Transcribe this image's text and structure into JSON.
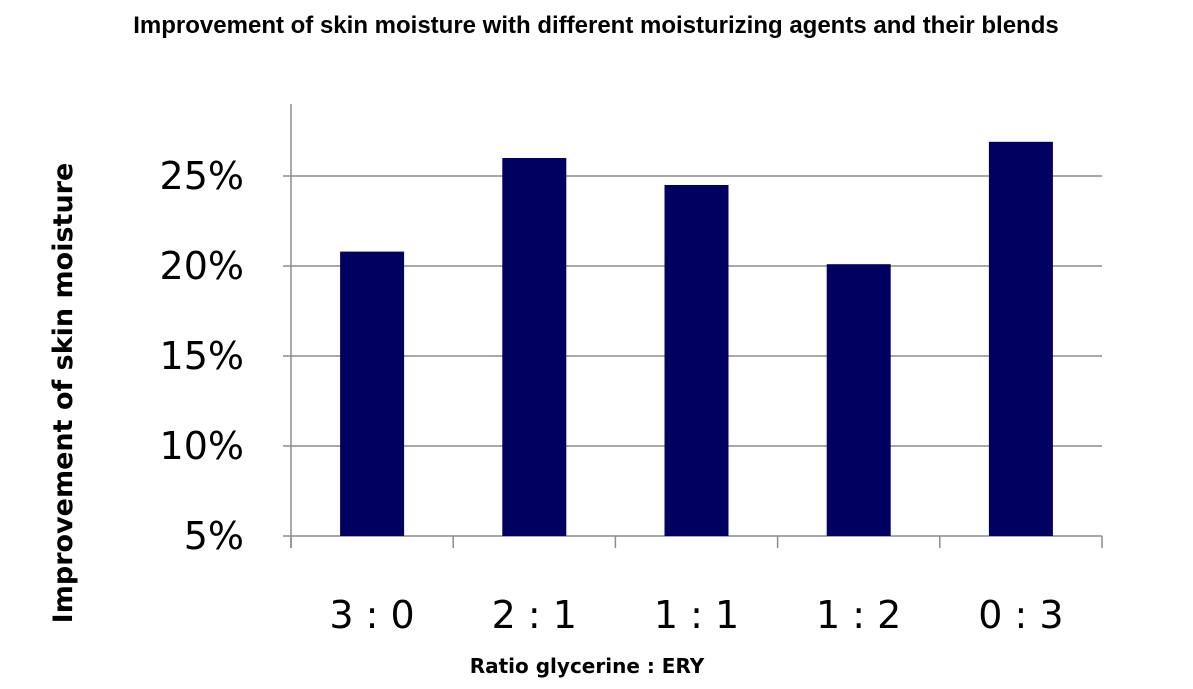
{
  "chart_data": {
    "type": "bar",
    "title": "Improvement of skin moisture with different moisturizing agents and their blends",
    "xlabel": "Ratio glycerine : ERY",
    "ylabel": "Improvement of skin moisture",
    "categories": [
      "3 : 0",
      "2 : 1",
      "1 : 1",
      "1 : 2",
      "0 : 3"
    ],
    "values": [
      20.8,
      26.0,
      24.5,
      20.1,
      26.9
    ],
    "value_unit": "%",
    "ylim": [
      5,
      29
    ],
    "yticks": [
      5,
      10,
      15,
      20,
      25
    ],
    "ytick_labels": [
      "5%",
      "10%",
      "15%",
      "20%",
      "25%"
    ],
    "grid": "horizontal",
    "legend": "none",
    "bar_color": "#000060"
  }
}
